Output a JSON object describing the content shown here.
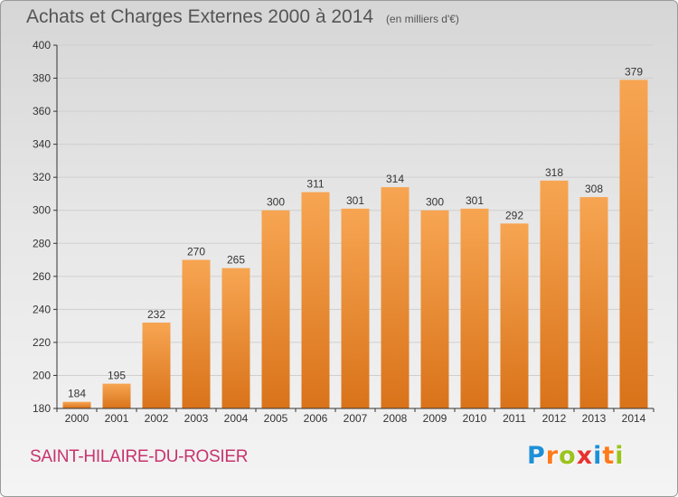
{
  "title": "Achats et Charges Externes 2000 à 2014",
  "unit": "(en milliers d'€)",
  "commune": "SAINT-HILAIRE-DU-ROSIER",
  "logo": {
    "letters": [
      "P",
      "r",
      "o",
      "x",
      "i",
      "t",
      "i"
    ],
    "colors": [
      "#1e90d8",
      "#ff7a1a",
      "#9bc31e",
      "#e8322f",
      "#1e90d8",
      "#ff7a1a",
      "#9bc31e"
    ]
  },
  "colors": {
    "bar_top": "#f7a552",
    "bar_bottom": "#d9731a",
    "axis": "#333333",
    "grid": "#cfcfcf"
  },
  "chart_data": {
    "type": "bar",
    "title": "Achats et Charges Externes 2000 à 2014",
    "subtitle": "(en milliers d'€)",
    "xlabel": "",
    "ylabel": "",
    "categories": [
      "2000",
      "2001",
      "2002",
      "2003",
      "2004",
      "2005",
      "2006",
      "2007",
      "2008",
      "2009",
      "2010",
      "2011",
      "2012",
      "2013",
      "2014"
    ],
    "values": [
      184,
      195,
      232,
      270,
      265,
      300,
      311,
      301,
      314,
      300,
      301,
      292,
      318,
      308,
      379
    ],
    "data_labels": [
      "184",
      "195",
      "232",
      "270",
      "265",
      "300",
      "311",
      "301",
      "314",
      "300",
      "301",
      "292",
      "318",
      "308",
      "379"
    ],
    "ylim": [
      180,
      400
    ],
    "yticks": [
      180,
      200,
      220,
      240,
      260,
      280,
      300,
      320,
      340,
      360,
      380,
      400
    ],
    "ytick_labels": [
      "180",
      "200",
      "220",
      "240",
      "260",
      "280",
      "300",
      "320",
      "340",
      "360",
      "380",
      "400"
    ],
    "grid": true,
    "legend": "none"
  }
}
